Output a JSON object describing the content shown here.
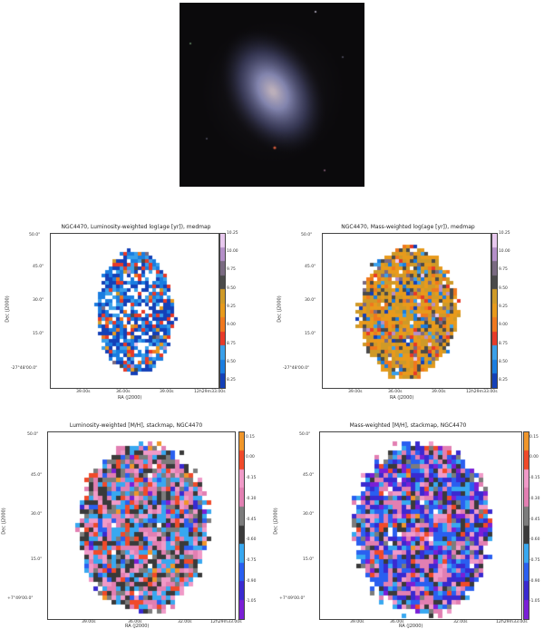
{
  "galaxy_image": {
    "kind": "optical-colour-composite"
  },
  "panels": [
    {
      "id": "lw-age",
      "title": "NGC4470, Luminosity-weighted log(age [yr]), medmap",
      "yticks": [
        "-27°48'00.0\"",
        "15.0\"",
        "30.0\"",
        "45.0\"",
        "50.0\""
      ],
      "xticks": [
        "39.00s",
        "36.00s",
        "39.00s",
        "12h29m33.00s"
      ],
      "xlabel": "RA (J2000)",
      "ylabel": "Dec (J2000)",
      "cbar_ticks": [
        "10.25",
        "10.00",
        "9.75",
        "9.50",
        "9.25",
        "9.00",
        "8.75",
        "8.50",
        "8.25"
      ],
      "colormap": "age"
    },
    {
      "id": "mw-age",
      "title": "NGC4470, Mass-weighted log(age [yr]), medmap",
      "yticks": [
        "-27°48'00.0\"",
        "15.0\"",
        "30.0\"",
        "45.0\"",
        "50.0\""
      ],
      "xticks": [
        "39.00s",
        "36.00s",
        "39.00s",
        "12h29m33.00s"
      ],
      "xlabel": "RA (J2000)",
      "ylabel": "Dec (J2000)",
      "cbar_ticks": [
        "10.25",
        "10.00",
        "9.75",
        "9.50",
        "9.25",
        "9.00",
        "8.75",
        "8.50",
        "8.25"
      ],
      "colormap": "age"
    },
    {
      "id": "lw-mh",
      "title": "Luminosity-weighted [M/H], stackmap, NGC4470",
      "yticks": [
        "+7°49'00.0\"",
        "15.0\"",
        "30.0\"",
        "45.0\"",
        "50.0\""
      ],
      "xticks": [
        "39.00s",
        "36.00s",
        "32.00s",
        "12h29m33.00s"
      ],
      "xlabel": "RA (J2000)",
      "ylabel": "Dec (J2000)",
      "cbar_ticks": [
        "0.15",
        "0.00",
        "-0.15",
        "-0.30",
        "-0.45",
        "-0.60",
        "-0.75",
        "-0.90",
        "-1.05"
      ],
      "colormap": "metal"
    },
    {
      "id": "mw-mh",
      "title": "Mass-weighted [M/H], stackmap, NGC4470",
      "yticks": [
        "+7°49'00.0\"",
        "15.0\"",
        "30.0\"",
        "45.0\"",
        "50.0\""
      ],
      "xticks": [
        "39.00s",
        "36.00s",
        "32.00s",
        "12h29m33.00s"
      ],
      "xlabel": "RA (J2000)",
      "ylabel": "Dec (J2000)",
      "cbar_ticks": [
        "0.15",
        "0.00",
        "-0.15",
        "-0.30",
        "-0.45",
        "-0.60",
        "-0.75",
        "-0.90",
        "-1.05"
      ],
      "colormap": "metal"
    }
  ]
}
